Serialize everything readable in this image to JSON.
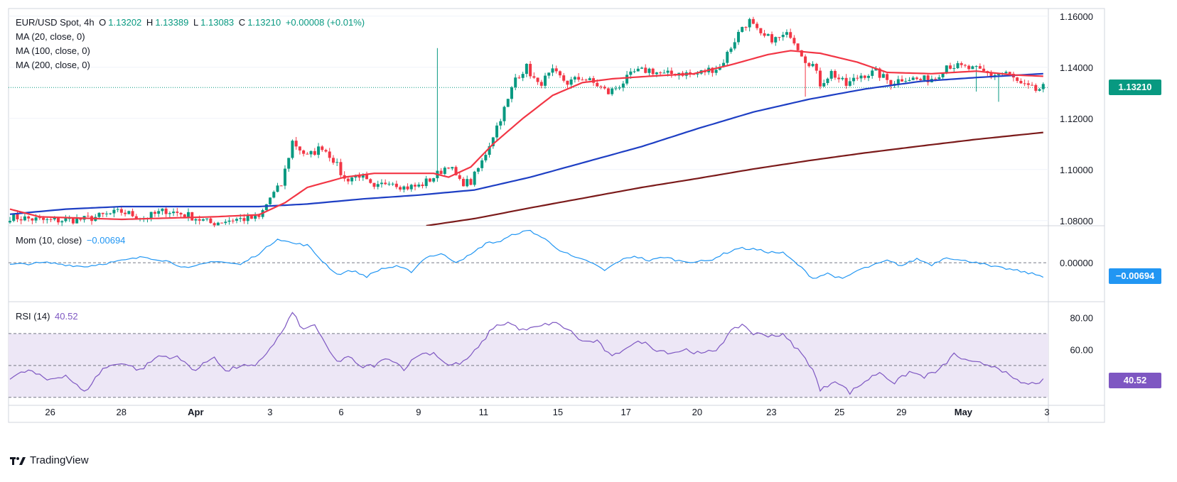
{
  "header": {
    "symbol": "EUR/USD Spot, 4h",
    "open_label": "O",
    "open": "1.13202",
    "high_label": "H",
    "high": "1.13389",
    "low_label": "L",
    "low": "1.13083",
    "close_label": "C",
    "close": "1.13210",
    "change": "+0.00008 (+0.01%)"
  },
  "legend": {
    "ma20": "MA (20, close, 0)",
    "ma100": "MA (100, close, 0)",
    "ma200": "MA (200, close, 0)",
    "mom_label": "Mom (10, close)",
    "mom_value": "−0.00694",
    "rsi_label": "RSI (14)",
    "rsi_value": "40.52"
  },
  "price_tags": {
    "price": "1.13210",
    "mom": "−0.00694",
    "rsi": "40.52"
  },
  "colors": {
    "up": "#089981",
    "down": "#f23645",
    "ma20": "#f23645",
    "ma100": "#1e3fc4",
    "ma200": "#7b1a1a",
    "mom": "#2196f3",
    "rsi": "#7e57c2",
    "rsi_band": "#ede7f6",
    "price_tag": "#089981",
    "mom_tag": "#2196f3",
    "rsi_tag": "#7e57c2"
  },
  "footer": {
    "brand": "TradingView",
    "logo_icon": "tradingview-logo-icon"
  },
  "chart_data": [
    {
      "type": "candlestick",
      "title": "EUR/USD Spot, 4h",
      "x_tick_labels": [
        "26",
        "28",
        "Apr",
        "3",
        "6",
        "9",
        "11",
        "15",
        "17",
        "20",
        "23",
        "25",
        "29",
        "May",
        "3"
      ],
      "y_ticks": [
        "1.16000",
        "1.14000",
        "1.12000",
        "1.10000",
        "1.08000"
      ],
      "ylim": [
        1.078,
        1.163
      ],
      "current_price": 1.1321,
      "anchors": [
        [
          0,
          1.0815
        ],
        [
          10,
          1.08
        ],
        [
          20,
          1.0805
        ],
        [
          30,
          1.0835
        ],
        [
          36,
          1.081
        ],
        [
          42,
          1.084
        ],
        [
          48,
          1.082
        ],
        [
          54,
          1.079
        ],
        [
          60,
          1.0805
        ],
        [
          67,
          1.081
        ],
        [
          70,
          1.089
        ],
        [
          73,
          1.094
        ],
        [
          76,
          1.111
        ],
        [
          80,
          1.105
        ],
        [
          84,
          1.109
        ],
        [
          87,
          1.104
        ],
        [
          90,
          1.096
        ],
        [
          94,
          1.098
        ],
        [
          98,
          1.092
        ],
        [
          102,
          1.096
        ],
        [
          106,
          1.093
        ],
        [
          110,
          1.0935
        ],
        [
          114,
          1.097
        ],
        [
          118,
          1.102
        ],
        [
          121,
          1.095
        ],
        [
          124,
          1.095
        ],
        [
          127,
          1.103
        ],
        [
          131,
          1.117
        ],
        [
          134,
          1.127
        ],
        [
          136,
          1.136
        ],
        [
          139,
          1.14
        ],
        [
          142,
          1.133
        ],
        [
          146,
          1.138
        ],
        [
          150,
          1.134
        ],
        [
          154,
          1.136
        ],
        [
          158,
          1.133
        ],
        [
          161,
          1.13
        ],
        [
          164,
          1.133
        ],
        [
          168,
          1.138
        ],
        [
          172,
          1.139
        ],
        [
          176,
          1.137
        ],
        [
          180,
          1.138
        ],
        [
          184,
          1.137
        ],
        [
          188,
          1.139
        ],
        [
          191,
          1.14
        ],
        [
          194,
          1.148
        ],
        [
          197,
          1.156
        ],
        [
          199,
          1.158
        ],
        [
          202,
          1.152
        ],
        [
          206,
          1.151
        ],
        [
          210,
          1.153
        ],
        [
          214,
          1.143
        ],
        [
          216,
          1.141
        ],
        [
          218,
          1.1335
        ],
        [
          221,
          1.138
        ],
        [
          225,
          1.133
        ],
        [
          229,
          1.137
        ],
        [
          233,
          1.138
        ],
        [
          237,
          1.134
        ],
        [
          241,
          1.136
        ],
        [
          245,
          1.135
        ],
        [
          249,
          1.136
        ],
        [
          252,
          1.141
        ],
        [
          256,
          1.14
        ],
        [
          260,
          1.139
        ],
        [
          264,
          1.137
        ],
        [
          268,
          1.138
        ],
        [
          272,
          1.133
        ],
        [
          276,
          1.131
        ],
        [
          278,
          1.132
        ]
      ],
      "wicks": [
        [
          115,
          1.1475
        ],
        [
          214,
          1.1285
        ],
        [
          260,
          1.1305
        ],
        [
          266,
          1.1265
        ]
      ],
      "ma20_anchors": [
        [
          0,
          1.0845
        ],
        [
          8,
          1.0815
        ],
        [
          30,
          1.0805
        ],
        [
          55,
          1.0815
        ],
        [
          67,
          1.0823
        ],
        [
          74,
          1.087
        ],
        [
          80,
          1.093
        ],
        [
          90,
          1.097
        ],
        [
          98,
          1.0985
        ],
        [
          104,
          1.0985
        ],
        [
          114,
          1.0985
        ],
        [
          118,
          1.097
        ],
        [
          124,
          1.101
        ],
        [
          130,
          1.11
        ],
        [
          138,
          1.12
        ],
        [
          146,
          1.129
        ],
        [
          154,
          1.134
        ],
        [
          162,
          1.1355
        ],
        [
          172,
          1.1365
        ],
        [
          184,
          1.1375
        ],
        [
          194,
          1.141
        ],
        [
          204,
          1.145
        ],
        [
          210,
          1.1465
        ],
        [
          218,
          1.1455
        ],
        [
          228,
          1.142
        ],
        [
          236,
          1.138
        ],
        [
          248,
          1.1375
        ],
        [
          260,
          1.1385
        ],
        [
          270,
          1.137
        ],
        [
          278,
          1.1365
        ]
      ],
      "ma100_anchors": [
        [
          0,
          1.0825
        ],
        [
          15,
          1.0845
        ],
        [
          30,
          1.0855
        ],
        [
          50,
          1.0855
        ],
        [
          67,
          1.0855
        ],
        [
          80,
          1.0865
        ],
        [
          95,
          1.0885
        ],
        [
          110,
          1.09
        ],
        [
          125,
          1.092
        ],
        [
          140,
          1.097
        ],
        [
          155,
          1.103
        ],
        [
          170,
          1.109
        ],
        [
          185,
          1.116
        ],
        [
          200,
          1.1225
        ],
        [
          215,
          1.1275
        ],
        [
          230,
          1.1315
        ],
        [
          245,
          1.1345
        ],
        [
          260,
          1.136
        ],
        [
          278,
          1.1375
        ]
      ],
      "ma200_anchors": [
        [
          112,
          1.078
        ],
        [
          125,
          1.0808
        ],
        [
          140,
          1.085
        ],
        [
          155,
          1.089
        ],
        [
          170,
          1.093
        ],
        [
          185,
          1.0965
        ],
        [
          200,
          1.1002
        ],
        [
          215,
          1.1035
        ],
        [
          230,
          1.1065
        ],
        [
          245,
          1.1092
        ],
        [
          260,
          1.1118
        ],
        [
          278,
          1.1145
        ]
      ]
    },
    {
      "type": "line",
      "title": "Mom (10, close)",
      "zero_line": 0,
      "ylim": [
        -0.02,
        0.019
      ],
      "anchors": [
        [
          0,
          -0.001
        ],
        [
          10,
          0.0
        ],
        [
          20,
          -0.002
        ],
        [
          30,
          0.001
        ],
        [
          36,
          0.003
        ],
        [
          42,
          0.001
        ],
        [
          48,
          -0.003
        ],
        [
          55,
          0.001
        ],
        [
          62,
          -0.001
        ],
        [
          68,
          0.006
        ],
        [
          72,
          0.0125
        ],
        [
          76,
          0.01
        ],
        [
          80,
          0.009
        ],
        [
          84,
          0.001
        ],
        [
          88,
          -0.006
        ],
        [
          92,
          -0.004
        ],
        [
          96,
          -0.007
        ],
        [
          100,
          -0.003
        ],
        [
          104,
          -0.002
        ],
        [
          108,
          -0.0045
        ],
        [
          112,
          0.003
        ],
        [
          116,
          0.0045
        ],
        [
          120,
          0.0005
        ],
        [
          124,
          0.004
        ],
        [
          128,
          0.01
        ],
        [
          132,
          0.011
        ],
        [
          136,
          0.015
        ],
        [
          140,
          0.0165
        ],
        [
          144,
          0.012
        ],
        [
          148,
          0.0065
        ],
        [
          152,
          0.0025
        ],
        [
          156,
          0.0005
        ],
        [
          160,
          -0.004
        ],
        [
          164,
          0.001
        ],
        [
          168,
          0.0035
        ],
        [
          172,
          0.001
        ],
        [
          176,
          0.003
        ],
        [
          180,
          0.001
        ],
        [
          184,
          0.0005
        ],
        [
          188,
          0.001
        ],
        [
          192,
          0.0045
        ],
        [
          196,
          0.0075
        ],
        [
          200,
          0.007
        ],
        [
          204,
          0.0055
        ],
        [
          208,
          0.005
        ],
        [
          212,
          -0.001
        ],
        [
          216,
          -0.008
        ],
        [
          220,
          -0.0055
        ],
        [
          224,
          -0.0085
        ],
        [
          228,
          -0.004
        ],
        [
          232,
          -0.0015
        ],
        [
          236,
          0.001
        ],
        [
          240,
          -0.0015
        ],
        [
          244,
          0.002
        ],
        [
          248,
          -0.001
        ],
        [
          252,
          0.003
        ],
        [
          256,
          0.001
        ],
        [
          260,
          0.0005
        ],
        [
          264,
          -0.002
        ],
        [
          268,
          -0.003
        ],
        [
          272,
          -0.0045
        ],
        [
          278,
          -0.0069
        ]
      ]
    },
    {
      "type": "line",
      "title": "RSI (14)",
      "y_ticks": [
        "80.00",
        "60.00"
      ],
      "bands": [
        30,
        50,
        70
      ],
      "ylim": [
        25,
        90
      ],
      "anchors": [
        [
          0,
          42
        ],
        [
          5,
          47
        ],
        [
          10,
          41
        ],
        [
          15,
          44
        ],
        [
          20,
          33
        ],
        [
          25,
          48
        ],
        [
          30,
          52
        ],
        [
          35,
          47
        ],
        [
          40,
          56
        ],
        [
          45,
          55
        ],
        [
          50,
          47
        ],
        [
          55,
          56
        ],
        [
          58,
          46
        ],
        [
          62,
          50
        ],
        [
          66,
          49
        ],
        [
          70,
          61
        ],
        [
          73,
          70
        ],
        [
          76,
          83
        ],
        [
          79,
          72
        ],
        [
          82,
          76
        ],
        [
          85,
          62
        ],
        [
          88,
          52
        ],
        [
          91,
          56
        ],
        [
          94,
          49
        ],
        [
          98,
          50
        ],
        [
          102,
          55
        ],
        [
          106,
          48
        ],
        [
          110,
          57
        ],
        [
          114,
          58
        ],
        [
          118,
          50
        ],
        [
          122,
          52
        ],
        [
          126,
          61
        ],
        [
          130,
          74
        ],
        [
          134,
          77
        ],
        [
          138,
          72
        ],
        [
          142,
          74
        ],
        [
          146,
          77
        ],
        [
          150,
          73
        ],
        [
          154,
          65
        ],
        [
          158,
          65
        ],
        [
          162,
          55
        ],
        [
          166,
          62
        ],
        [
          170,
          65
        ],
        [
          174,
          60
        ],
        [
          178,
          58
        ],
        [
          182,
          60
        ],
        [
          186,
          57
        ],
        [
          190,
          60
        ],
        [
          194,
          71
        ],
        [
          197,
          76
        ],
        [
          200,
          70
        ],
        [
          204,
          69
        ],
        [
          208,
          69
        ],
        [
          212,
          60
        ],
        [
          216,
          48
        ],
        [
          218,
          34
        ],
        [
          222,
          41
        ],
        [
          226,
          33
        ],
        [
          230,
          40
        ],
        [
          234,
          46
        ],
        [
          238,
          39
        ],
        [
          242,
          46
        ],
        [
          246,
          43
        ],
        [
          250,
          47
        ],
        [
          254,
          57
        ],
        [
          258,
          52
        ],
        [
          262,
          51
        ],
        [
          266,
          49
        ],
        [
          270,
          41
        ],
        [
          274,
          38
        ],
        [
          278,
          40.52
        ]
      ]
    }
  ]
}
